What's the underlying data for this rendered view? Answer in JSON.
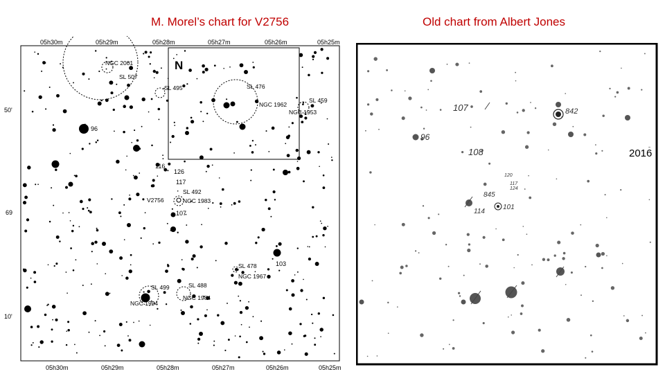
{
  "captions": {
    "left": "M. Morel’s chart for V2756",
    "right": "Old chart from Albert Jones"
  },
  "year_label": "2016",
  "left_chart": {
    "top_ra_ticks": [
      "05h30m",
      "05h29m",
      "05h28m",
      "05h27m",
      "05h26m",
      "05h25m"
    ],
    "bottom_ra_ticks": [
      "05h30m",
      "05h29m",
      "05h28m",
      "05h27m",
      "05h26m",
      "05h25m"
    ],
    "dec_ticks": [
      "50'",
      "69",
      "10'"
    ],
    "north_marker": "N",
    "objects": {
      "ngc2001": "NGC 2001",
      "sl507": "SL 507",
      "sl495": "SL 495",
      "sl476": "SL 476",
      "ngc1962": "NGC 1962",
      "sl459": "SL 459",
      "ngc1953": "NGC 1953",
      "sl492": "SL 492",
      "ngc1983": "NGC 1983",
      "sl478": "SL 478",
      "ngc1967": "NGC 1967",
      "sl499": "SL 499",
      "ngc1994": "NGC 1994",
      "sl488": "SL 488",
      "ngc1984": "NGC 1984"
    },
    "target_label": "V2756",
    "comparison_labels": {
      "c96": "96",
      "c116": "116",
      "c126": "126",
      "c117": "117",
      "c107": "107",
      "c103": "103"
    }
  },
  "right_chart": {
    "labels": {
      "l107": "107",
      "l842": "842",
      "l96": "96",
      "l108": "108",
      "l120": "120",
      "l117": "117",
      "l124": "124",
      "l845": "845",
      "l114": "114",
      "l101": "101"
    }
  },
  "colors": {
    "caption": "#c00000",
    "ink": "#000000",
    "photo_star": "#555555"
  }
}
